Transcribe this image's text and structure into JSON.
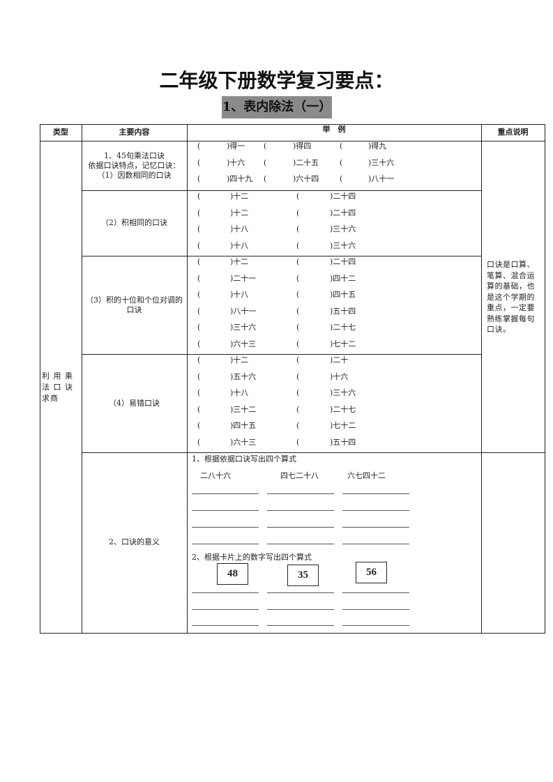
{
  "title": "二年级下册数学复习要点：",
  "subtitle": "1、表内除法（一）",
  "headers": [
    "类型",
    "主要内容",
    "举　例",
    "重点说明"
  ],
  "type_label": "利 用 乘 法 口 诀 求商",
  "sections": [
    {
      "content": "1、45句乘法口诀\n依据口诀特点，记忆口诀：\n（1）因数相同的口诀",
      "rows": [
        [
          "得一",
          "得四",
          "得九"
        ],
        [
          "十六",
          "二十五",
          "三十六"
        ],
        [
          "四十九",
          "六十四",
          "八十一"
        ]
      ]
    },
    {
      "content": "（2）积相同的口诀",
      "rows": [
        [
          "十二",
          "二十四"
        ],
        [
          "十二",
          "二十四"
        ],
        [
          "十八",
          "三十六"
        ],
        [
          "十八",
          "三十六"
        ]
      ]
    },
    {
      "content": "（3）积的十位和个位对调的口诀",
      "rows": [
        [
          "十二",
          "二十四"
        ],
        [
          "二十一",
          "四十二"
        ],
        [
          "十八",
          "四十五"
        ],
        [
          "八十一",
          "五十四"
        ],
        [
          "三十六",
          "二十七"
        ],
        [
          "六十三",
          "七十二"
        ]
      ]
    },
    {
      "content": "（4）易错口诀",
      "rows": [
        [
          "十二",
          "二十"
        ],
        [
          "五十六",
          "十六"
        ],
        [
          "十八",
          "三十六"
        ],
        [
          "三十二",
          "二十七"
        ],
        [
          "四十五",
          "七十二"
        ],
        [
          "六十三",
          "五十四"
        ]
      ]
    }
  ],
  "note": "口诀是口算、笔算、混合运算的基础，也是这个学期的重点，一定要熟练掌握每句口诀。",
  "meaning": {
    "content": "2、口诀的意义",
    "task1": "1、根据依据口诀写出四个算式",
    "rhymes": [
      "二八十六",
      "四七二十八",
      "六七四十二"
    ],
    "task2": "2、根据卡片上的数字写出四个算式",
    "cards": [
      "48",
      "35",
      "56"
    ]
  }
}
